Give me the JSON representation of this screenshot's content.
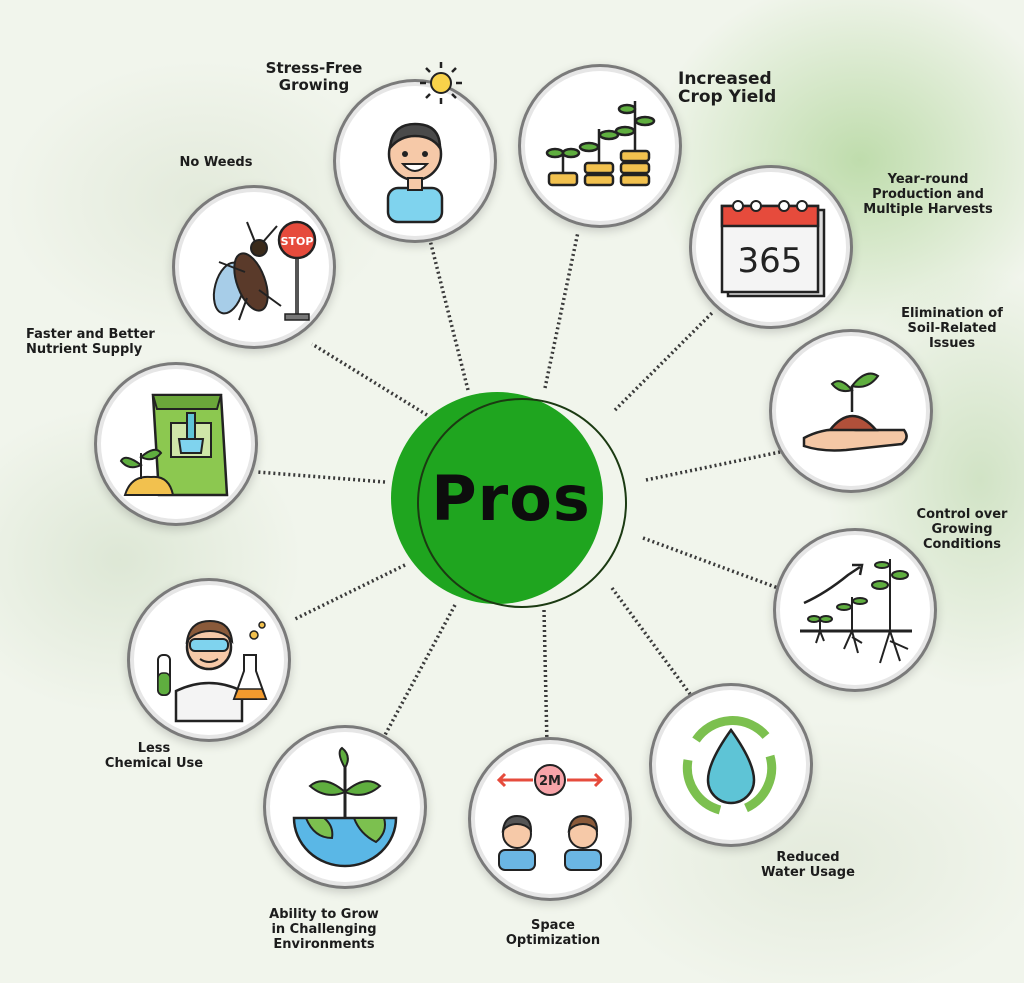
{
  "center": {
    "title": "Pros"
  },
  "colors": {
    "center_green": "#1fa51f",
    "accent_blue": "#7fd3ee",
    "gold": "#f2c14e",
    "leaf_green": "#5fae3f"
  },
  "benefits": [
    {
      "label": "Stress-Free Growing",
      "icon": "happy-person-sun-icon"
    },
    {
      "label": "Increased Crop Yield",
      "icon": "growing-plants-coins-icon"
    },
    {
      "label": "Year-round Production and Multiple Harvests",
      "icon": "calendar-365-icon"
    },
    {
      "label": "Elimination of Soil-Related Issues",
      "icon": "hand-soil-sprout-icon"
    },
    {
      "label": "Control over Growing Conditions",
      "icon": "plant-growth-chart-icon"
    },
    {
      "label": "Reduced Water Usage",
      "icon": "water-drop-recycle-icon"
    },
    {
      "label": "Space Optimization",
      "icon": "two-people-distance-icon",
      "distance_text": "2M"
    },
    {
      "label": "Ability to Grow in Challenging Environments",
      "icon": "globe-sprout-icon"
    },
    {
      "label": "Less Chemical Use",
      "icon": "scientist-icon"
    },
    {
      "label": "Faster and Better Nutrient Supply",
      "icon": "fertilizer-bag-icon"
    },
    {
      "label": "No Weeds",
      "icon": "stop-insect-icon",
      "sign_text": "STOP"
    }
  ],
  "calendar_text": "365"
}
